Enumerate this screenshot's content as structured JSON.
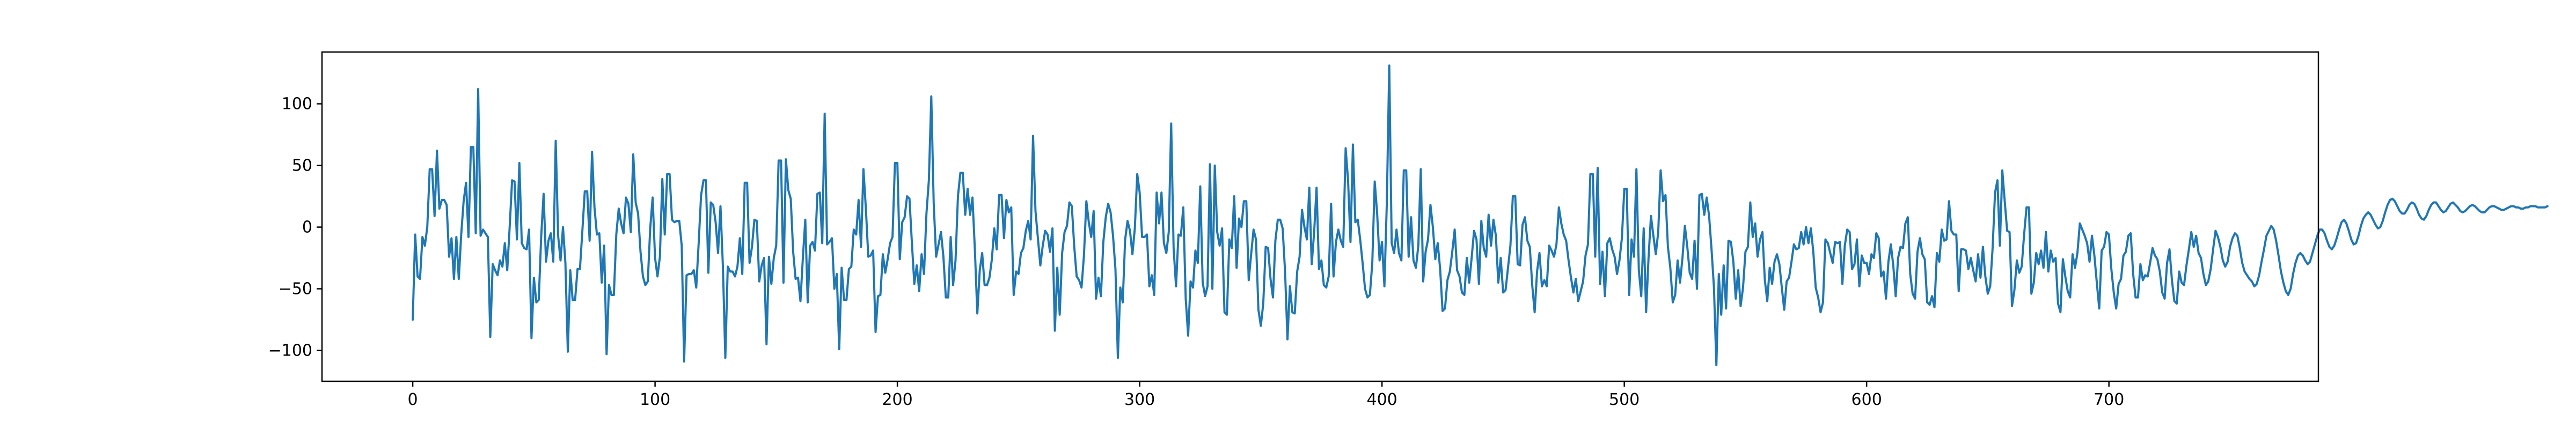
{
  "chart_data": {
    "type": "line",
    "title": "",
    "xlabel": "",
    "ylabel": "",
    "xlim": [
      -37.45,
      786.45
    ],
    "ylim": [
      -125,
      142
    ],
    "grid": false,
    "legend": "none",
    "line_color": "#1f77b4",
    "xticks": [
      0,
      100,
      200,
      300,
      400,
      500,
      600,
      700
    ],
    "yticks": [
      -100,
      -50,
      0,
      50,
      100
    ],
    "x_start": 0,
    "x_step": 1,
    "y": [
      -75,
      -6,
      -40,
      -42,
      -8,
      -15,
      0,
      47,
      47,
      9,
      62,
      15,
      22,
      22,
      18,
      -24,
      -9,
      -42,
      -8,
      -42,
      -6,
      21,
      36,
      -8,
      65,
      65,
      -5,
      112,
      -7,
      -2,
      -5,
      -8,
      -89,
      -30,
      -35,
      -39,
      -27,
      -32,
      -13,
      -35,
      0,
      38,
      37,
      -10,
      52,
      -13,
      -17,
      -18,
      -2,
      -90,
      -41,
      -61,
      -59,
      -8,
      27,
      -28,
      -11,
      -5,
      -28,
      70,
      -7,
      -27,
      0,
      -29,
      -101,
      -35,
      -59,
      -59,
      -34,
      -34,
      -3,
      29,
      29,
      -11,
      61,
      16,
      -6,
      -5,
      -45,
      -15,
      -103,
      -47,
      -55,
      -55,
      -6,
      15,
      3,
      -5,
      24,
      19,
      -4,
      59,
      20,
      11,
      -20,
      -40,
      -47,
      -44,
      -1,
      24,
      -25,
      -40,
      -24,
      39,
      -6,
      43,
      43,
      6,
      4,
      5,
      5,
      -15,
      -109,
      -39,
      -38,
      -38,
      -35,
      -49,
      -13,
      26,
      38,
      38,
      -37,
      20,
      18,
      4,
      -21,
      17,
      -32,
      -106,
      -32,
      -36,
      -36,
      -40,
      -32,
      -9,
      -38,
      36,
      36,
      -29,
      -16,
      6,
      5,
      -44,
      -31,
      -25,
      -95,
      -24,
      -46,
      -25,
      -15,
      54,
      54,
      -45,
      55,
      30,
      23,
      -20,
      -42,
      -41,
      -60,
      -25,
      6,
      -61,
      -15,
      -12,
      -19,
      27,
      28,
      -13,
      92,
      -14,
      -12,
      -9,
      -50,
      -38,
      -99,
      -33,
      -59,
      -59,
      -34,
      -32,
      -2,
      -6,
      22,
      -16,
      47,
      15,
      -24,
      -23,
      -19,
      -85,
      -56,
      -55,
      -22,
      -37,
      -26,
      -13,
      -8,
      52,
      52,
      -26,
      4,
      8,
      25,
      23,
      -13,
      -46,
      -31,
      -52,
      -22,
      -38,
      11,
      38,
      106,
      19,
      -24,
      -14,
      -4,
      -24,
      -57,
      -57,
      -8,
      -47,
      -27,
      25,
      44,
      44,
      10,
      31,
      10,
      24,
      -19,
      -70,
      -35,
      -21,
      -47,
      -47,
      -41,
      -26,
      -1,
      -18,
      26,
      26,
      -9,
      22,
      12,
      16,
      -55,
      -36,
      -38,
      -21,
      -17,
      -3,
      5,
      -10,
      74,
      13,
      -9,
      -31,
      -15,
      -3,
      -6,
      -20,
      -1,
      -84,
      -33,
      -71,
      -21,
      -4,
      1,
      20,
      17,
      -16,
      -40,
      -43,
      -49,
      -23,
      21,
      4,
      -8,
      13,
      -58,
      -41,
      -56,
      -12,
      8,
      19,
      12,
      -7,
      -34,
      -106,
      -49,
      -61,
      -10,
      5,
      -3,
      -22,
      -1,
      43,
      28,
      -8,
      -8,
      -6,
      -48,
      -39,
      -55,
      28,
      3,
      28,
      -13,
      -21,
      -4,
      84,
      -17,
      -48,
      -6,
      -7,
      16,
      -58,
      -88,
      -44,
      -49,
      -19,
      -29,
      33,
      -45,
      -56,
      -48,
      51,
      -50,
      50,
      -4,
      -15,
      -1,
      -69,
      -71,
      -10,
      -17,
      25,
      -33,
      7,
      0,
      21,
      21,
      -43,
      -22,
      -2,
      -10,
      -67,
      -80,
      -62,
      -16,
      -17,
      -42,
      -57,
      -11,
      6,
      6,
      -1,
      -36,
      -91,
      -48,
      -69,
      -70,
      -36,
      -24,
      14,
      0,
      -10,
      32,
      -30,
      -4,
      32,
      -34,
      -27,
      -47,
      -49,
      -40,
      19,
      -40,
      -12,
      -2,
      -11,
      -16,
      64,
      38,
      -12,
      67,
      4,
      6,
      -10,
      -29,
      -50,
      -57,
      -55,
      -29,
      37,
      11,
      -27,
      -12,
      -48,
      20,
      131,
      -13,
      -21,
      -2,
      -21,
      -27,
      46,
      46,
      -24,
      8,
      -27,
      -33,
      -15,
      47,
      -44,
      -20,
      -10,
      18,
      0,
      -26,
      -13,
      -34,
      -68,
      -66,
      -43,
      -36,
      -20,
      -2,
      -35,
      -40,
      -53,
      -55,
      -25,
      -45,
      -25,
      -3,
      -10,
      -46,
      5,
      -17,
      -24,
      10,
      -15,
      6,
      -7,
      -45,
      -25,
      -53,
      -51,
      -33,
      -15,
      25,
      25,
      -30,
      -31,
      2,
      8,
      -11,
      -16,
      -47,
      -69,
      -36,
      -21,
      -48,
      -43,
      -48,
      -15,
      -19,
      -24,
      -14,
      16,
      3,
      -6,
      -11,
      -27,
      -41,
      -53,
      -42,
      -60,
      -52,
      -44,
      -23,
      -14,
      43,
      43,
      -24,
      48,
      -46,
      -20,
      -56,
      -13,
      -9,
      -18,
      -24,
      -38,
      -27,
      -9,
      31,
      31,
      -55,
      -10,
      -24,
      47,
      -35,
      -56,
      -1,
      -69,
      -25,
      9,
      -7,
      -22,
      -4,
      46,
      21,
      26,
      -16,
      -33,
      -61,
      -55,
      -27,
      -45,
      -25,
      1,
      -16,
      -37,
      -42,
      -11,
      -50,
      26,
      27,
      10,
      24,
      9,
      -18,
      -49,
      -112,
      -38,
      -71,
      -31,
      -66,
      -11,
      -12,
      -28,
      -58,
      -35,
      -64,
      -49,
      -20,
      -16,
      20,
      -8,
      3,
      -24,
      -10,
      -4,
      -43,
      -60,
      -33,
      -46,
      -28,
      -22,
      -30,
      -49,
      -67,
      -44,
      -41,
      -28,
      -14,
      -18,
      -17,
      -4,
      -14,
      0,
      -13,
      -1,
      -20,
      -49,
      -57,
      -69,
      -61,
      -10,
      -13,
      -21,
      -29,
      -12,
      -13,
      -12,
      -46,
      -15,
      -2,
      -4,
      -34,
      -30,
      -10,
      -48,
      -23,
      -29,
      -29,
      -38,
      -22,
      -25,
      -5,
      -9,
      -40,
      -36,
      -58,
      -28,
      -14,
      -31,
      -56,
      -25,
      -16,
      -17,
      3,
      8,
      -38,
      -54,
      -58,
      -20,
      -9,
      -22,
      -26,
      -61,
      -63,
      -56,
      -65,
      -21,
      -28,
      -2,
      -11,
      -10,
      21,
      -3,
      -6,
      -6,
      -52,
      -18,
      -18,
      -19,
      -34,
      -25,
      -35,
      -44,
      -22,
      -41,
      -16,
      -40,
      -54,
      -48,
      -17,
      28,
      38,
      -15,
      46,
      21,
      -3,
      -4,
      -64,
      -51,
      -27,
      -37,
      -32,
      -6,
      16,
      16,
      -54,
      -45,
      -21,
      -30,
      -19,
      -33,
      -4,
      -36,
      -19,
      -28,
      -25,
      -62,
      -69,
      -26,
      -40,
      -52,
      -57,
      -22,
      -33,
      -21,
      3,
      -2,
      -7,
      -13,
      -28,
      -7,
      -23,
      -45,
      -66,
      -19,
      -16,
      -4,
      -6,
      -34,
      -53,
      -66,
      -46,
      -42,
      -23,
      -20,
      -7,
      -5,
      -38,
      -57,
      -57,
      -30,
      -43,
      -39,
      -40,
      -29,
      -17,
      -23,
      -26,
      -36,
      -53,
      -58,
      -29,
      -18,
      -43,
      -60,
      -62,
      -36,
      -45,
      -47,
      -31,
      -18,
      -4,
      -16,
      -7,
      -21,
      -25,
      -38,
      -47,
      -44,
      -34,
      -18,
      -3,
      -8,
      -16,
      -27,
      -32,
      -28,
      -16,
      -9,
      -5,
      -7,
      -17,
      -29,
      -36,
      -39,
      -42,
      -44,
      -48,
      -46,
      -39,
      -28,
      -18,
      -7,
      -3,
      1,
      -2,
      -11,
      -23,
      -36,
      -45,
      -52,
      -55,
      -50,
      -38,
      -29,
      -23,
      -21,
      -23,
      -27,
      -30,
      -28,
      -21,
      -14,
      -7,
      -2,
      -2,
      -5,
      -11,
      -16,
      -18,
      -15,
      -9,
      -2,
      4,
      6,
      3,
      -3,
      -10,
      -14,
      -13,
      -7,
      1,
      7,
      10,
      12,
      10,
      6,
      2,
      -1,
      0,
      5,
      12,
      18,
      22,
      23,
      21,
      17,
      13,
      11,
      11,
      14,
      18,
      20,
      19,
      15,
      10,
      7,
      6,
      9,
      14,
      18,
      20,
      20,
      17,
      14,
      12,
      13,
      16,
      19,
      20,
      18,
      16,
      13,
      12,
      13,
      15,
      17,
      18,
      17,
      15,
      13,
      12,
      12,
      14,
      16,
      17,
      17,
      16,
      15,
      14,
      14,
      15,
      16,
      17,
      17,
      16,
      16,
      15,
      15,
      16,
      16,
      17,
      17,
      17,
      16,
      16,
      16,
      16,
      17
    ]
  }
}
